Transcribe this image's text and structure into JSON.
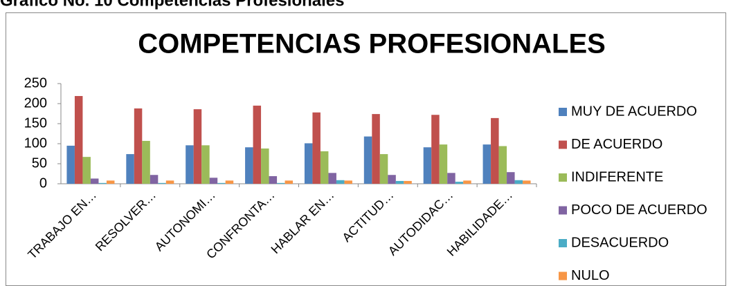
{
  "heading": "Gráfico No. 10 Competencias Profesionales",
  "chart_data": {
    "type": "bar",
    "title": "COMPETENCIAS PROFESIONALES",
    "categories": [
      "TRABAJO EN…",
      "RESOLVER…",
      "AUTONOMI…",
      "CONFRONTA…",
      "HABLAR EN…",
      "ACTITUD…",
      "AUTODIDAC…",
      "HABILIDADE…"
    ],
    "series": [
      {
        "name": "MUY DE ACUERDO",
        "color": "#4f81bd",
        "values": [
          95,
          74,
          96,
          91,
          101,
          118,
          91,
          98
        ]
      },
      {
        "name": "DE ACUERDO",
        "color": "#c0504d",
        "values": [
          219,
          188,
          186,
          195,
          178,
          174,
          172,
          164
        ]
      },
      {
        "name": "INDIFERENTE",
        "color": "#9bbb59",
        "values": [
          67,
          107,
          96,
          88,
          81,
          74,
          98,
          94
        ]
      },
      {
        "name": "POCO DE ACUERDO",
        "color": "#8064a2",
        "values": [
          13,
          22,
          15,
          19,
          27,
          22,
          27,
          29
        ]
      },
      {
        "name": "DESACUERDO",
        "color": "#4bacc6",
        "values": [
          2,
          2,
          2,
          2,
          9,
          7,
          5,
          9
        ]
      },
      {
        "name": "NULO",
        "color": "#f79646",
        "values": [
          8,
          8,
          8,
          8,
          8,
          7,
          8,
          8
        ]
      }
    ],
    "ylim": [
      0,
      250
    ],
    "yticks": [
      0,
      50,
      100,
      150,
      200,
      250
    ],
    "grid": false,
    "legend": "right"
  }
}
